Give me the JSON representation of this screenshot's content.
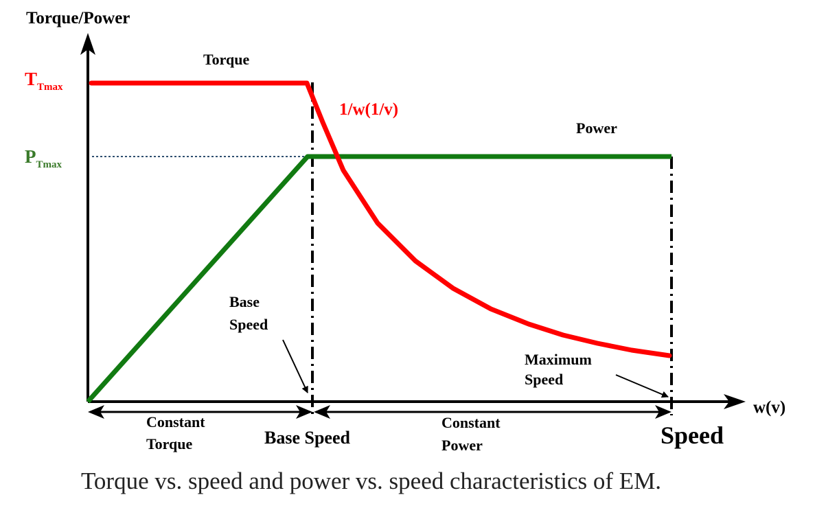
{
  "colors": {
    "torque": "#ff0000",
    "power": "#117a11",
    "axis": "#000000",
    "dotted": "#2f4f6f"
  },
  "labels": {
    "y_axis": "Torque/Power",
    "t_max_main": "T",
    "t_max_sub": "Tmax",
    "p_max_main": "P",
    "p_max_sub": "Tmax",
    "torque": "Torque",
    "inverse": "1/w(1/v)",
    "power": "Power",
    "base_speed_line1": "Base",
    "base_speed_line2": "Speed",
    "max_speed_line1": "Maximum",
    "max_speed_line2": "Speed",
    "x_axis": "w(v)",
    "constant_torque_line1": "Constant",
    "constant_torque_line2": "Torque",
    "base_speed_bottom": "Base Speed",
    "constant_power_line1": "Constant",
    "constant_power_line2": "Power",
    "speed_bottom": "Speed",
    "caption": "Torque vs. speed and power vs. speed characteristics of EM."
  }
}
